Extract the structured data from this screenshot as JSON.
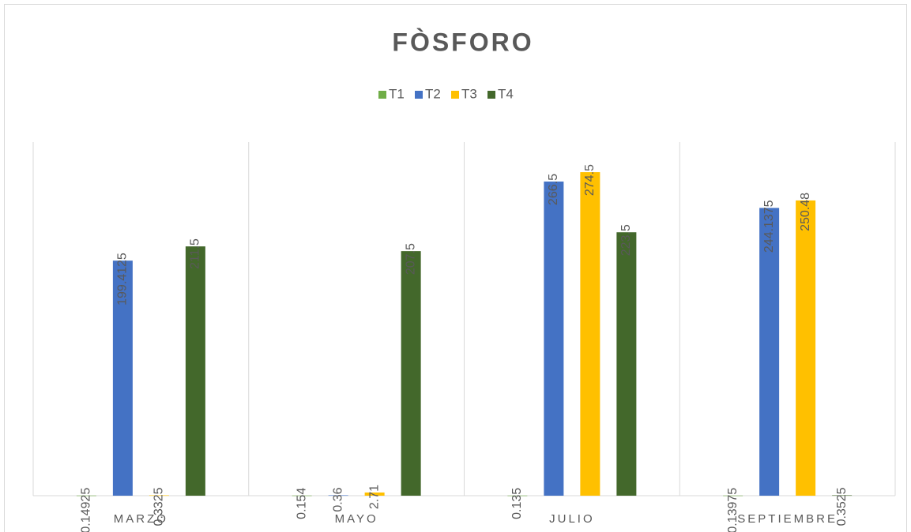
{
  "chart_data": {
    "type": "bar",
    "title": "FÒSFORO",
    "categories": [
      "MARZO",
      "MAYO",
      "JULIO",
      "SEPTIEMBRE"
    ],
    "series": [
      {
        "name": "T1",
        "color": "#70ad47",
        "values": [
          0.14925,
          0.154,
          0.135,
          0.13975
        ]
      },
      {
        "name": "T2",
        "color": "#4472c4",
        "values": [
          199.4125,
          0.36,
          266.5,
          244.1375
        ]
      },
      {
        "name": "T3",
        "color": "#ffc000",
        "values": [
          0.3325,
          2.71,
          274.5,
          250.48
        ]
      },
      {
        "name": "T4",
        "color": "#43682b",
        "values": [
          211.5,
          207.5,
          223.5,
          0.3525
        ]
      }
    ],
    "ylim": [
      0,
      300
    ],
    "legend": "top"
  }
}
